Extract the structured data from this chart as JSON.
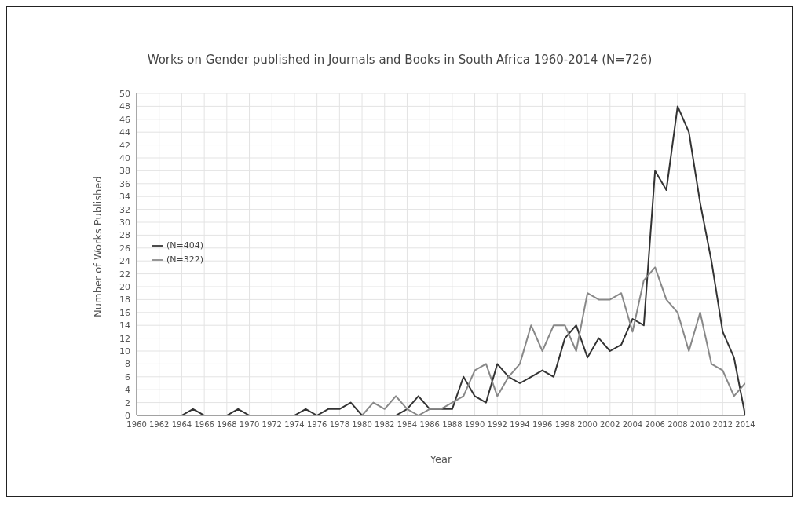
{
  "chart_data": {
    "type": "line",
    "title": "Works on Gender published in Journals and Books in South Africa 1960-2014 (N=726)",
    "xlabel": "Year",
    "ylabel": "Number of Works Published",
    "x": [
      1960,
      1961,
      1962,
      1963,
      1964,
      1965,
      1966,
      1967,
      1968,
      1969,
      1970,
      1971,
      1972,
      1973,
      1974,
      1975,
      1976,
      1977,
      1978,
      1979,
      1980,
      1981,
      1982,
      1983,
      1984,
      1985,
      1986,
      1987,
      1988,
      1989,
      1990,
      1991,
      1992,
      1993,
      1994,
      1995,
      1996,
      1997,
      1998,
      1999,
      2000,
      2001,
      2002,
      2003,
      2004,
      2005,
      2006,
      2007,
      2008,
      2009,
      2010,
      2011,
      2012,
      2013,
      2014
    ],
    "series": [
      {
        "name": "(N=404)",
        "color": "#333333",
        "values": [
          0,
          0,
          0,
          0,
          0,
          1,
          0,
          0,
          0,
          1,
          0,
          0,
          0,
          0,
          0,
          1,
          0,
          1,
          1,
          2,
          0,
          0,
          0,
          0,
          1,
          3,
          1,
          1,
          1,
          6,
          3,
          2,
          8,
          6,
          5,
          6,
          7,
          6,
          12,
          14,
          9,
          12,
          10,
          11,
          15,
          14,
          38,
          35,
          48,
          44,
          33,
          24,
          13,
          9,
          0
        ]
      },
      {
        "name": "(N=322)",
        "color": "#888888",
        "values": [
          null,
          null,
          null,
          null,
          null,
          null,
          null,
          null,
          null,
          null,
          null,
          null,
          null,
          null,
          null,
          null,
          null,
          null,
          null,
          null,
          0,
          2,
          1,
          3,
          1,
          0,
          1,
          1,
          2,
          3,
          7,
          8,
          3,
          6,
          8,
          14,
          10,
          14,
          14,
          10,
          19,
          18,
          18,
          19,
          13,
          21,
          23,
          18,
          16,
          10,
          16,
          8,
          7,
          3,
          5
        ]
      }
    ],
    "xlim": [
      1960,
      2014
    ],
    "xticks": [
      1960,
      1962,
      1964,
      1966,
      1968,
      1970,
      1972,
      1974,
      1976,
      1978,
      1980,
      1982,
      1984,
      1986,
      1988,
      1990,
      1992,
      1994,
      1996,
      1998,
      2000,
      2002,
      2004,
      2006,
      2008,
      2010,
      2012,
      2014
    ],
    "ylim": [
      0,
      50
    ],
    "yticks": [
      0,
      2,
      4,
      6,
      8,
      10,
      12,
      14,
      16,
      18,
      20,
      22,
      24,
      26,
      28,
      30,
      32,
      34,
      36,
      38,
      40,
      42,
      44,
      46,
      48,
      50
    ],
    "grid": true,
    "legend": "left",
    "marker": "none",
    "line_style": "solid"
  }
}
